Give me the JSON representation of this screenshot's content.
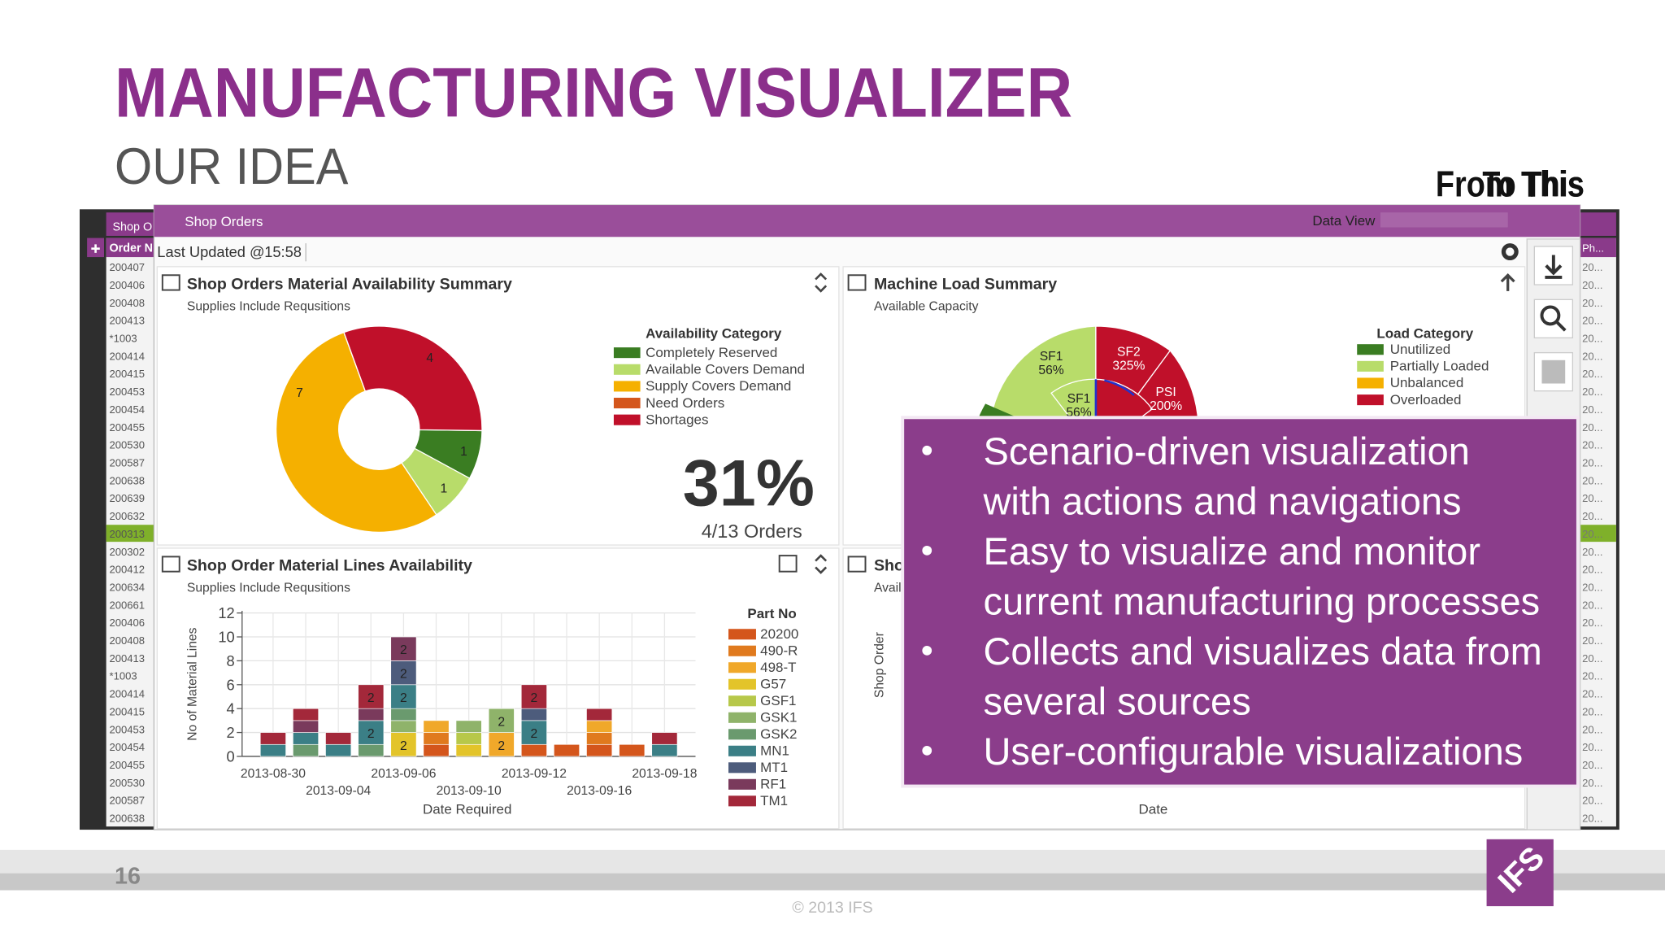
{
  "header": {
    "title": "MANUFACTURING VISUALIZER",
    "subtitle": "OUR IDEA",
    "from_label": "From This",
    "to_label": "To This"
  },
  "back_window": {
    "tab": "Shop O",
    "column_header": "Order N",
    "orders": [
      "200407",
      "200406",
      "200408",
      "200413",
      "*1003",
      "200414",
      "200415",
      "200453",
      "200454",
      "200455",
      "200530",
      "200587",
      "200638",
      "200639",
      "200632",
      "200313",
      "200302",
      "200412",
      "200634",
      "200661",
      "200406",
      "200408",
      "200413",
      "*1003",
      "200414",
      "200415",
      "200453",
      "200454",
      "200455",
      "200530",
      "200587",
      "200638"
    ],
    "right_header": "Ph...",
    "right_cells": [
      "20...",
      "20...",
      "20...",
      "20...",
      "20...",
      "20...",
      "20...",
      "20...",
      "20...",
      "20...",
      "20...",
      "20...",
      "20...",
      "20...",
      "20...",
      "20...",
      "20...",
      "20...",
      "20...",
      "20...",
      "20...",
      "20...",
      "20...",
      "20...",
      "20...",
      "20...",
      "20...",
      "20...",
      "20...",
      "20...",
      "20...",
      "20..."
    ]
  },
  "window": {
    "title": "Shop Orders",
    "data_view": "Data View",
    "last_updated": "Last Updated @",
    "time": "15:58"
  },
  "availability_panel": {
    "title": "Shop Orders Material Availability Summary",
    "subtitle": "Supplies Include Requsitions",
    "legend_title": "Availability Category",
    "categories": [
      "Completely Reserved",
      "Available Covers Demand",
      "Supply Covers Demand",
      "Need Orders",
      "Shortages"
    ],
    "colors": [
      "#3a7d22",
      "#b8dc6a",
      "#f5b000",
      "#d4561c",
      "#c0102a"
    ],
    "values": [
      1,
      1,
      7,
      0,
      4
    ],
    "kpi": "31%",
    "kpi_caption": "4/13 Orders"
  },
  "machine_panel": {
    "title": "Machine Load Summary",
    "subtitle": "Available Capacity",
    "legend_title": "Load Category",
    "categories": [
      "Unutilized",
      "Partially Loaded",
      "Unbalanced",
      "Overloaded"
    ],
    "colors": [
      "#3a7d22",
      "#b8dc6a",
      "#f5b000",
      "#c0102a"
    ],
    "slice_labels": [
      [
        "SF1",
        "56%"
      ],
      [
        "SF2",
        "325%"
      ],
      [
        "PSI",
        "200%"
      ],
      [
        "SF1",
        "56%"
      ]
    ]
  },
  "bar_chart": {
    "type": "bar",
    "title": "Shop Order Material Lines Availability",
    "subtitle": "Supplies Include Requsitions",
    "y_label": "No of Material Lines",
    "x_label": "Date Required",
    "legend_title": "Part No",
    "categories": [
      "2013-08-30",
      null,
      "2013-09-04",
      null,
      "2013-09-06",
      null,
      "2013-09-10",
      null,
      "2013-09-12",
      null,
      "2013-09-16",
      null,
      "2013-09-18"
    ],
    "ylim": [
      0,
      12
    ],
    "yticks": [
      0,
      2,
      4,
      6,
      8,
      10,
      12
    ],
    "grid": true,
    "series": [
      {
        "name": "20200",
        "color": "#d4561c",
        "values": [
          0,
          0,
          0,
          0,
          0,
          1,
          0,
          0,
          1,
          1,
          1,
          1,
          0
        ]
      },
      {
        "name": "490-R",
        "color": "#e07a1e",
        "values": [
          0,
          0,
          0,
          0,
          0,
          1,
          0,
          0,
          0,
          0,
          1,
          0,
          0
        ]
      },
      {
        "name": "498-T",
        "color": "#f0a82a",
        "values": [
          0,
          0,
          0,
          0,
          0,
          1,
          0,
          2,
          0,
          0,
          1,
          0,
          0
        ]
      },
      {
        "name": "G57",
        "color": "#e3c42a",
        "values": [
          0,
          0,
          0,
          0,
          2,
          0,
          1,
          0,
          0,
          0,
          0,
          0,
          0
        ]
      },
      {
        "name": "GSF1",
        "color": "#b7c84a",
        "values": [
          0,
          0,
          0,
          0,
          0,
          0,
          1,
          0,
          0,
          0,
          0,
          0,
          0
        ]
      },
      {
        "name": "GSK1",
        "color": "#8fb36a",
        "values": [
          0,
          0,
          0,
          0,
          1,
          0,
          1,
          2,
          0,
          0,
          0,
          0,
          0
        ]
      },
      {
        "name": "GSK2",
        "color": "#6a9a6e",
        "values": [
          0,
          1,
          0,
          1,
          1,
          0,
          0,
          0,
          0,
          0,
          0,
          0,
          0
        ]
      },
      {
        "name": "MN1",
        "color": "#3b7f86",
        "values": [
          1,
          1,
          1,
          2,
          2,
          0,
          0,
          0,
          2,
          0,
          0,
          0,
          1
        ]
      },
      {
        "name": "MT1",
        "color": "#4d5c7c",
        "values": [
          0,
          0,
          0,
          0,
          2,
          0,
          0,
          0,
          1,
          0,
          0,
          0,
          0
        ]
      },
      {
        "name": "RF1",
        "color": "#7a3a5c",
        "values": [
          0,
          1,
          0,
          1,
          2,
          0,
          0,
          0,
          0,
          0,
          0,
          0,
          0
        ]
      },
      {
        "name": "TM1",
        "color": "#a3283a",
        "values": [
          1,
          1,
          1,
          2,
          0,
          0,
          0,
          0,
          2,
          0,
          1,
          0,
          1
        ]
      }
    ]
  },
  "partial_panel": {
    "title": "Sho",
    "subtitle": "Avail",
    "y_label": "Shop Order",
    "x_label": "Date"
  },
  "bullets": [
    [
      "Scenario-driven visualization",
      "with actions and navigations"
    ],
    [
      "Easy to visualize and monitor",
      "current manufacturing processes"
    ],
    [
      "Collects and visualizes data from",
      "several sources"
    ],
    [
      "User-configurable visualizations"
    ]
  ],
  "footer": {
    "page": "16",
    "copyright": "© 2013 IFS",
    "logo": "IFS"
  }
}
